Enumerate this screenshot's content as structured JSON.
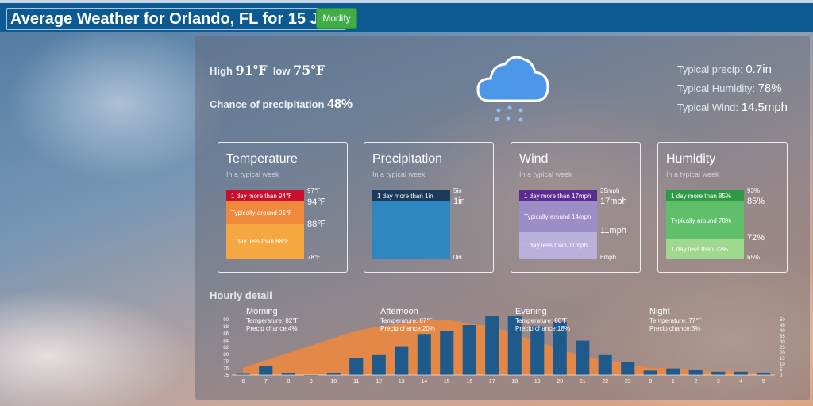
{
  "header": {
    "title": "Average Weather for Orlando, FL for 15 July",
    "modify_label": "Modify"
  },
  "summary": {
    "high_label": "High",
    "high": "91℉",
    "low_label": "low",
    "low": "75℉",
    "precip_chance_label": "Chance of precipitation",
    "precip_chance": "48%",
    "typical_precip_label": "Typical precip:",
    "typical_precip": "0.7in",
    "typical_humidity_label": "Typical Humidity:",
    "typical_humidity": "78%",
    "typical_wind_label": "Typical Wind:",
    "typical_wind": "14.5mph",
    "icon": "rain-cloud-icon"
  },
  "cards": {
    "temperature": {
      "title": "Temperature",
      "subtitle": "In a typical week",
      "seg_top": "1 day more than 94℉",
      "seg_mid": "Typically around 91℉",
      "seg_bot": "1 day less than 88℉",
      "t_max": "97℉",
      "t_upper": "94℉",
      "t_lower": "88℉",
      "t_min": "78℉",
      "color_top": "#c8102e",
      "color_mid": "#f08a3c",
      "color_bot": "#f5a742"
    },
    "precipitation": {
      "title": "Precipitation",
      "subtitle": "In a typical week",
      "seg_top": "1 day more than 1in",
      "t_max": "5in",
      "t_upper": "1in",
      "t_min": "0in",
      "color_top": "#1a3b5c",
      "color_main": "#2f87c2"
    },
    "wind": {
      "title": "Wind",
      "subtitle": "In a typical week",
      "seg_top": "1 day more than 17mph",
      "seg_mid": "Typically around 14mph",
      "seg_bot": "1 day less than 11mph",
      "t_max": "35mph",
      "t_upper": "17mph",
      "t_lower": "11mph",
      "t_min": "6mph",
      "color_top": "#5b2c8f",
      "color_mid": "#9c8dc6",
      "color_bot": "#b9b1dc"
    },
    "humidity": {
      "title": "Humidity",
      "subtitle": "In a typical week",
      "seg_top": "1 day more than 85%",
      "seg_mid": "Typically around 78%",
      "seg_bot": "1 day less than 72%",
      "t_max": "93%",
      "t_upper": "85%",
      "t_lower": "72%",
      "t_min": "65%",
      "color_top": "#2e9a46",
      "color_mid": "#5fbf6a",
      "color_bot": "#9fd98f"
    }
  },
  "hourly": {
    "label": "Hourly detail",
    "periods": [
      {
        "name": "Morning",
        "temp": "Temperature: 82℉",
        "precip": "Precip chance:4%"
      },
      {
        "name": "Afternoon",
        "temp": "Temperature: 87℉",
        "precip": "Precip chance:20%"
      },
      {
        "name": "Evening",
        "temp": "Temperature: 80℉",
        "precip": "Precip chance:18%"
      },
      {
        "name": "Night",
        "temp": "Temperature: 77℉",
        "precip": "Precip chance:3%"
      }
    ]
  },
  "chart_data": {
    "type": "bar",
    "categories": [
      "6",
      "7",
      "8",
      "9",
      "10",
      "11",
      "12",
      "13",
      "14",
      "15",
      "16",
      "17",
      "18",
      "19",
      "20",
      "21",
      "22",
      "23",
      "0",
      "1",
      "2",
      "3",
      "4",
      "5"
    ],
    "series": [
      {
        "values": [
          1,
          8,
          2,
          0,
          2,
          15,
          18,
          26,
          37,
          40,
          45,
          53,
          53,
          44,
          48,
          31,
          18,
          12,
          4,
          6,
          5,
          3,
          3,
          2
        ]
      },
      {
        "values": [
          77,
          79,
          81,
          83,
          85,
          87,
          88,
          89,
          90,
          90,
          89,
          88,
          86,
          84,
          82,
          80,
          79,
          78,
          77,
          77,
          76,
          76,
          76,
          75
        ]
      }
    ],
    "right_axis_ticks": [
      "50",
      "45",
      "40",
      "35",
      "30",
      "25",
      "20",
      "15",
      "10",
      "5",
      "0"
    ],
    "left_axis_ticks": [
      "90",
      "88",
      "86",
      "84",
      "82",
      "80",
      "78",
      "76",
      "75"
    ],
    "colors": {
      "bars": "#1f5a8c",
      "temperature_area": "#f0883c"
    }
  }
}
